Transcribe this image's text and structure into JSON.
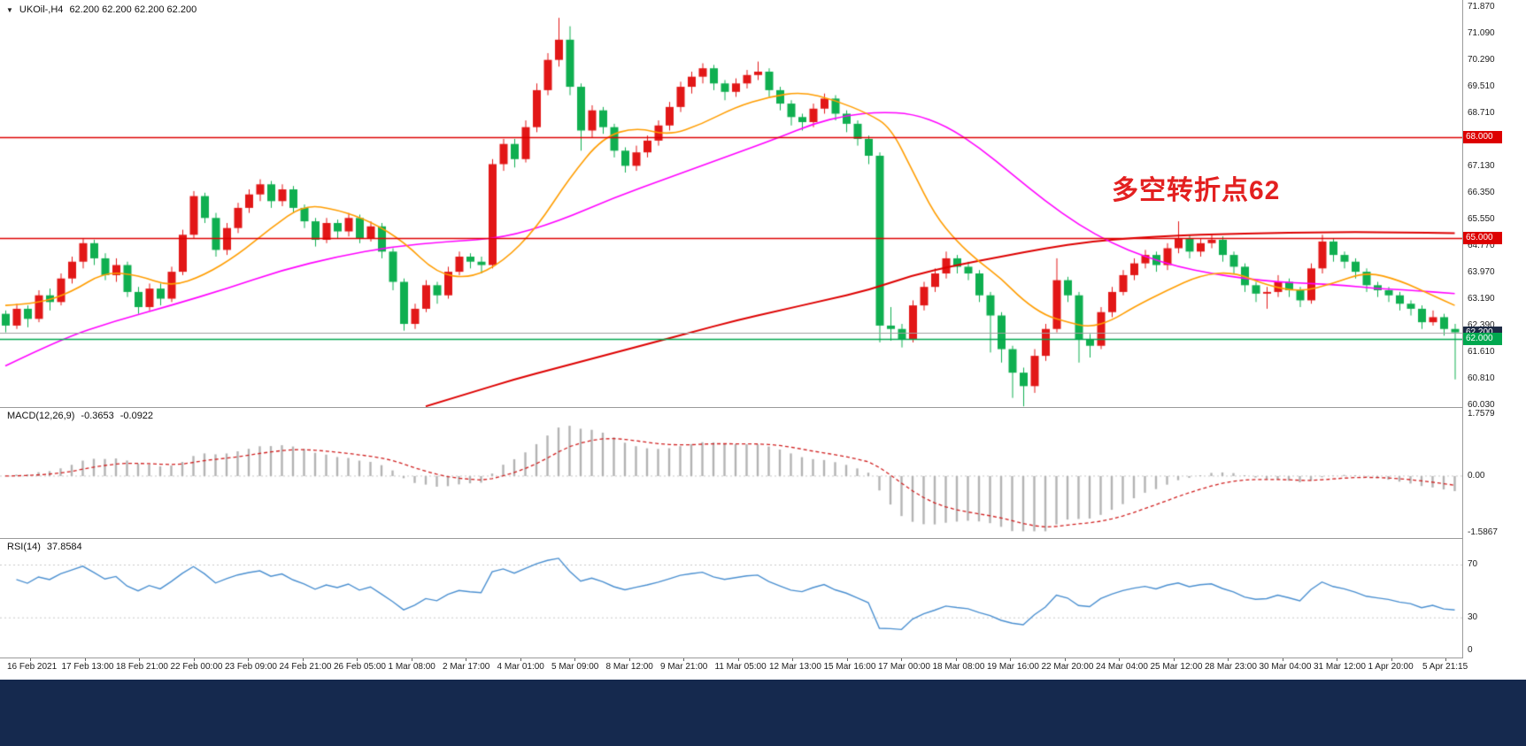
{
  "window": {
    "dropdown_icon": "▼",
    "symbol_period": "UKOil-,H4",
    "quotes": "62.200 62.200 62.200 62.200"
  },
  "annotation": {
    "text": "多空转折点62",
    "color": "#e32020"
  },
  "colors": {
    "up": "#e21717",
    "down": "#0faf50",
    "ma_fast": "#ff9d00",
    "ma_mid": "#ff00ff",
    "ma_slow": "#dd0000",
    "macd_hist": "#b3b3b3",
    "macd_signal": "#d02020",
    "rsi_line": "#4a8fd0",
    "footer_bg": "#15294e",
    "axis_text": "#1c1c1c"
  },
  "chart_data": {
    "type": "candlestick",
    "symbol": "UKOil-",
    "timeframe": "H4",
    "price_range": [
      60.03,
      71.87
    ],
    "y_ticks": [
      "71.870",
      "71.090",
      "70.290",
      "69.510",
      "68.710",
      "67.930",
      "67.130",
      "66.350",
      "65.550",
      "64.770",
      "63.970",
      "63.190",
      "62.390",
      "61.610",
      "60.810",
      "60.030"
    ],
    "x_ticks": [
      "16 Feb 2021",
      "17 Feb 13:00",
      "18 Feb 21:00",
      "22 Feb 00:00",
      "23 Feb 09:00",
      "24 Feb 21:00",
      "26 Feb 05:00",
      "1 Mar 08:00",
      "2 Mar 17:00",
      "4 Mar 01:00",
      "5 Mar 09:00",
      "8 Mar 12:00",
      "9 Mar 21:00",
      "11 Mar 05:00",
      "12 Mar 13:00",
      "15 Mar 16:00",
      "17 Mar 00:00",
      "18 Mar 08:00",
      "19 Mar 16:00",
      "22 Mar 20:00",
      "24 Mar 04:00",
      "25 Mar 12:00",
      "28 Mar 23:00",
      "30 Mar 04:00",
      "31 Mar 12:00",
      "1 Apr 20:00",
      "5 Apr 21:15"
    ],
    "hlines": [
      {
        "price": 68.0,
        "label": "68.000",
        "color": "#dd0000",
        "badge_bg": "#dd0000",
        "width": 1.5
      },
      {
        "price": 65.0,
        "label": "65.000",
        "color": "#dd0000",
        "badge_bg": "#dd0000",
        "width": 1.5
      },
      {
        "price": 62.2,
        "label": "62.200",
        "color": "#a0a0a0",
        "badge_bg": "#1e2b45",
        "width": 1
      },
      {
        "price": 62.0,
        "label": "62.000",
        "color": "#00a84f",
        "badge_bg": "#00a84f",
        "width": 1.5
      }
    ],
    "candles": [
      [
        62.75,
        62.85,
        62.2,
        62.4
      ],
      [
        62.4,
        63.05,
        62.3,
        62.9
      ],
      [
        62.9,
        63.0,
        62.35,
        62.6
      ],
      [
        62.6,
        63.45,
        62.5,
        63.3
      ],
      [
        63.3,
        63.5,
        62.85,
        63.1
      ],
      [
        63.1,
        63.95,
        63.0,
        63.8
      ],
      [
        63.8,
        64.45,
        63.65,
        64.3
      ],
      [
        64.3,
        65.0,
        64.1,
        64.85
      ],
      [
        64.85,
        64.95,
        64.2,
        64.4
      ],
      [
        64.4,
        64.55,
        63.75,
        63.9
      ],
      [
        63.9,
        64.4,
        63.7,
        64.2
      ],
      [
        64.2,
        64.3,
        63.25,
        63.4
      ],
      [
        63.4,
        63.55,
        62.75,
        62.95
      ],
      [
        62.95,
        63.65,
        62.85,
        63.5
      ],
      [
        63.5,
        63.65,
        63.0,
        63.2
      ],
      [
        63.2,
        64.15,
        63.1,
        64.0
      ],
      [
        64.0,
        65.25,
        63.9,
        65.1
      ],
      [
        65.1,
        66.4,
        65.0,
        66.25
      ],
      [
        66.25,
        66.35,
        65.45,
        65.6
      ],
      [
        65.6,
        65.75,
        64.45,
        64.65
      ],
      [
        64.65,
        65.45,
        64.5,
        65.3
      ],
      [
        65.3,
        66.05,
        65.15,
        65.9
      ],
      [
        65.9,
        66.45,
        65.75,
        66.3
      ],
      [
        66.3,
        66.75,
        66.1,
        66.6
      ],
      [
        66.6,
        66.7,
        65.9,
        66.1
      ],
      [
        66.1,
        66.6,
        65.95,
        66.45
      ],
      [
        66.45,
        66.55,
        65.75,
        65.9
      ],
      [
        65.9,
        66.0,
        65.3,
        65.5
      ],
      [
        65.5,
        65.6,
        64.75,
        64.95
      ],
      [
        64.95,
        65.6,
        64.85,
        65.45
      ],
      [
        65.45,
        65.55,
        65.0,
        65.2
      ],
      [
        65.2,
        65.75,
        65.05,
        65.6
      ],
      [
        65.6,
        65.7,
        64.85,
        65.0
      ],
      [
        65.0,
        65.5,
        64.9,
        65.35
      ],
      [
        65.35,
        65.45,
        64.4,
        64.6
      ],
      [
        64.6,
        64.7,
        63.45,
        63.7
      ],
      [
        63.7,
        63.8,
        62.25,
        62.45
      ],
      [
        62.45,
        63.05,
        62.3,
        62.9
      ],
      [
        62.9,
        63.75,
        62.8,
        63.6
      ],
      [
        63.6,
        63.7,
        63.05,
        63.3
      ],
      [
        63.3,
        64.15,
        63.2,
        64.0
      ],
      [
        64.0,
        64.6,
        63.9,
        64.45
      ],
      [
        64.45,
        64.55,
        64.1,
        64.3
      ],
      [
        64.3,
        64.45,
        63.95,
        64.2
      ],
      [
        64.2,
        67.35,
        64.1,
        67.2
      ],
      [
        67.2,
        67.95,
        67.0,
        67.8
      ],
      [
        67.8,
        67.95,
        67.1,
        67.35
      ],
      [
        67.35,
        68.5,
        67.25,
        68.3
      ],
      [
        68.3,
        69.6,
        68.15,
        69.4
      ],
      [
        69.4,
        70.5,
        69.25,
        70.3
      ],
      [
        70.3,
        71.55,
        70.1,
        70.9
      ],
      [
        70.9,
        71.3,
        69.25,
        69.5
      ],
      [
        69.5,
        69.6,
        67.6,
        68.2
      ],
      [
        68.2,
        68.95,
        68.0,
        68.8
      ],
      [
        68.8,
        68.9,
        68.1,
        68.3
      ],
      [
        68.3,
        68.4,
        67.4,
        67.6
      ],
      [
        67.6,
        67.7,
        66.95,
        67.15
      ],
      [
        67.15,
        67.75,
        67.0,
        67.55
      ],
      [
        67.55,
        68.05,
        67.4,
        67.9
      ],
      [
        67.9,
        68.5,
        67.75,
        68.35
      ],
      [
        68.35,
        69.05,
        68.2,
        68.9
      ],
      [
        68.9,
        69.65,
        68.75,
        69.5
      ],
      [
        69.5,
        69.95,
        69.3,
        69.8
      ],
      [
        69.8,
        70.2,
        69.6,
        70.05
      ],
      [
        70.05,
        70.15,
        69.4,
        69.6
      ],
      [
        69.6,
        69.7,
        69.1,
        69.35
      ],
      [
        69.35,
        69.75,
        69.2,
        69.6
      ],
      [
        69.6,
        70.0,
        69.45,
        69.85
      ],
      [
        69.85,
        70.25,
        69.7,
        69.95
      ],
      [
        69.95,
        70.05,
        69.2,
        69.4
      ],
      [
        69.4,
        69.5,
        68.8,
        69.0
      ],
      [
        69.0,
        69.1,
        68.35,
        68.6
      ],
      [
        68.6,
        68.7,
        68.2,
        68.45
      ],
      [
        68.45,
        69.0,
        68.3,
        68.85
      ],
      [
        68.85,
        69.3,
        68.7,
        69.15
      ],
      [
        69.15,
        69.25,
        68.5,
        68.7
      ],
      [
        68.7,
        68.8,
        68.15,
        68.4
      ],
      [
        68.4,
        68.5,
        67.75,
        67.95
      ],
      [
        67.95,
        68.05,
        67.2,
        67.45
      ],
      [
        67.45,
        67.55,
        61.9,
        62.4
      ],
      [
        62.4,
        62.95,
        61.95,
        62.3
      ],
      [
        62.3,
        62.45,
        61.75,
        62.0
      ],
      [
        62.0,
        63.15,
        61.9,
        63.0
      ],
      [
        63.0,
        63.7,
        62.85,
        63.55
      ],
      [
        63.55,
        64.1,
        63.4,
        63.95
      ],
      [
        63.95,
        64.6,
        63.8,
        64.4
      ],
      [
        64.4,
        64.5,
        63.95,
        64.15
      ],
      [
        64.15,
        64.3,
        63.75,
        63.95
      ],
      [
        63.95,
        64.05,
        63.1,
        63.3
      ],
      [
        63.3,
        63.4,
        61.6,
        62.7
      ],
      [
        62.7,
        62.8,
        61.3,
        61.7
      ],
      [
        61.7,
        61.8,
        60.25,
        61.0
      ],
      [
        61.0,
        61.15,
        60.0,
        60.6
      ],
      [
        60.6,
        61.7,
        60.4,
        61.5
      ],
      [
        61.5,
        62.45,
        61.35,
        62.3
      ],
      [
        62.3,
        64.4,
        62.2,
        63.75
      ],
      [
        63.75,
        63.85,
        63.1,
        63.3
      ],
      [
        63.3,
        63.4,
        61.3,
        62.0
      ],
      [
        62.0,
        62.15,
        61.45,
        61.8
      ],
      [
        61.8,
        62.95,
        61.7,
        62.8
      ],
      [
        62.8,
        63.55,
        62.65,
        63.4
      ],
      [
        63.4,
        64.05,
        63.3,
        63.9
      ],
      [
        63.9,
        64.4,
        63.75,
        64.25
      ],
      [
        64.25,
        64.65,
        64.1,
        64.5
      ],
      [
        64.5,
        64.6,
        64.0,
        64.2
      ],
      [
        64.2,
        64.85,
        64.05,
        64.7
      ],
      [
        64.7,
        65.5,
        64.55,
        65.0
      ],
      [
        65.0,
        65.1,
        64.4,
        64.6
      ],
      [
        64.6,
        65.0,
        64.45,
        64.85
      ],
      [
        64.85,
        65.1,
        64.7,
        64.95
      ],
      [
        64.95,
        65.05,
        64.3,
        64.5
      ],
      [
        64.5,
        64.6,
        63.95,
        64.15
      ],
      [
        64.15,
        64.25,
        63.4,
        63.6
      ],
      [
        63.6,
        63.7,
        63.1,
        63.35
      ],
      [
        63.35,
        63.55,
        62.9,
        63.4
      ],
      [
        63.4,
        63.9,
        63.25,
        63.7
      ],
      [
        63.7,
        63.8,
        63.25,
        63.45
      ],
      [
        63.45,
        63.55,
        62.95,
        63.15
      ],
      [
        63.15,
        64.25,
        63.05,
        64.1
      ],
      [
        64.1,
        65.1,
        63.95,
        64.9
      ],
      [
        64.9,
        65.0,
        64.3,
        64.5
      ],
      [
        64.5,
        64.6,
        64.1,
        64.3
      ],
      [
        64.3,
        64.4,
        63.8,
        64.0
      ],
      [
        64.0,
        64.1,
        63.4,
        63.6
      ],
      [
        63.6,
        63.7,
        63.25,
        63.45
      ],
      [
        63.45,
        63.55,
        63.1,
        63.3
      ],
      [
        63.3,
        63.4,
        62.85,
        63.05
      ],
      [
        63.05,
        63.15,
        62.7,
        62.9
      ],
      [
        62.9,
        63.0,
        62.3,
        62.5
      ],
      [
        62.5,
        62.85,
        62.4,
        62.65
      ],
      [
        62.65,
        62.75,
        62.1,
        62.3
      ],
      [
        62.3,
        62.45,
        60.8,
        62.2
      ]
    ],
    "ma_fast_orange": [
      [
        0,
        63.0
      ],
      [
        3,
        63.05
      ],
      [
        6,
        63.4
      ],
      [
        9,
        64.0
      ],
      [
        12,
        63.9
      ],
      [
        15,
        63.55
      ],
      [
        18,
        63.9
      ],
      [
        21,
        64.5
      ],
      [
        24,
        65.3
      ],
      [
        27,
        66.0
      ],
      [
        30,
        65.85
      ],
      [
        33,
        65.5
      ],
      [
        36,
        64.9
      ],
      [
        39,
        63.95
      ],
      [
        42,
        63.8
      ],
      [
        45,
        64.3
      ],
      [
        48,
        65.3
      ],
      [
        51,
        66.8
      ],
      [
        54,
        68.0
      ],
      [
        57,
        68.3
      ],
      [
        60,
        68.05
      ],
      [
        63,
        68.4
      ],
      [
        66,
        68.9
      ],
      [
        69,
        69.2
      ],
      [
        72,
        69.35
      ],
      [
        75,
        69.1
      ],
      [
        78,
        68.7
      ],
      [
        80,
        68.3
      ],
      [
        82,
        67.0
      ],
      [
        84,
        65.7
      ],
      [
        86,
        64.9
      ],
      [
        88,
        64.3
      ],
      [
        90,
        63.8
      ],
      [
        92,
        63.15
      ],
      [
        94,
        62.7
      ],
      [
        96,
        62.5
      ],
      [
        98,
        62.35
      ],
      [
        100,
        62.55
      ],
      [
        102,
        62.95
      ],
      [
        105,
        63.45
      ],
      [
        108,
        63.9
      ],
      [
        111,
        64.0
      ],
      [
        114,
        63.6
      ],
      [
        117,
        63.4
      ],
      [
        120,
        63.65
      ],
      [
        123,
        64.0
      ],
      [
        126,
        63.75
      ],
      [
        129,
        63.3
      ],
      [
        131,
        63.0
      ]
    ],
    "ma_mid_magenta": [
      [
        0,
        61.2
      ],
      [
        5,
        62.0
      ],
      [
        10,
        62.55
      ],
      [
        15,
        63.0
      ],
      [
        20,
        63.5
      ],
      [
        25,
        64.05
      ],
      [
        30,
        64.45
      ],
      [
        35,
        64.75
      ],
      [
        40,
        64.9
      ],
      [
        45,
        65.0
      ],
      [
        50,
        65.5
      ],
      [
        55,
        66.2
      ],
      [
        60,
        66.8
      ],
      [
        65,
        67.4
      ],
      [
        70,
        68.0
      ],
      [
        73,
        68.4
      ],
      [
        76,
        68.65
      ],
      [
        79,
        68.75
      ],
      [
        82,
        68.7
      ],
      [
        85,
        68.35
      ],
      [
        88,
        67.7
      ],
      [
        91,
        66.9
      ],
      [
        94,
        66.1
      ],
      [
        97,
        65.4
      ],
      [
        100,
        64.85
      ],
      [
        103,
        64.45
      ],
      [
        106,
        64.15
      ],
      [
        109,
        63.95
      ],
      [
        112,
        63.8
      ],
      [
        115,
        63.7
      ],
      [
        118,
        63.65
      ],
      [
        121,
        63.6
      ],
      [
        124,
        63.5
      ],
      [
        127,
        63.45
      ],
      [
        131,
        63.35
      ]
    ],
    "ma_slow_red": [
      [
        38,
        60.0
      ],
      [
        42,
        60.4
      ],
      [
        46,
        60.8
      ],
      [
        50,
        61.15
      ],
      [
        54,
        61.5
      ],
      [
        58,
        61.85
      ],
      [
        62,
        62.2
      ],
      [
        66,
        62.55
      ],
      [
        70,
        62.85
      ],
      [
        74,
        63.15
      ],
      [
        78,
        63.45
      ],
      [
        82,
        63.9
      ],
      [
        86,
        64.2
      ],
      [
        90,
        64.45
      ],
      [
        94,
        64.7
      ],
      [
        98,
        64.9
      ],
      [
        102,
        65.0
      ],
      [
        106,
        65.08
      ],
      [
        110,
        65.12
      ],
      [
        114,
        65.15
      ],
      [
        118,
        65.17
      ],
      [
        122,
        65.18
      ],
      [
        126,
        65.17
      ],
      [
        131,
        65.15
      ]
    ],
    "macd": {
      "label": "MACD(12,26,9)",
      "value_main": "-0.3653",
      "value_signal": "-0.0922",
      "settings": [
        12,
        26,
        9
      ],
      "y_ticks": [
        "1.7579",
        "0.00",
        "-1.5867"
      ],
      "range": [
        -1.5867,
        1.7579
      ]
    },
    "rsi": {
      "label": "RSI(14)",
      "value": "37.8584",
      "period": 14,
      "y_ticks": [
        "70",
        "30",
        "0"
      ],
      "levels": [
        30,
        70
      ]
    }
  }
}
